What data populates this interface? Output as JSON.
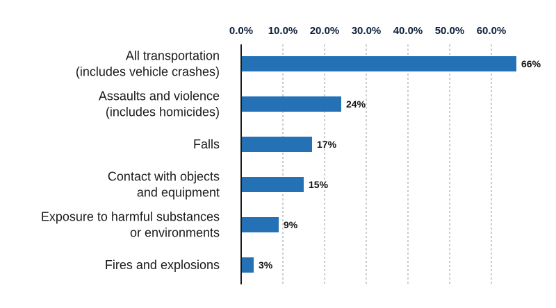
{
  "chart_data": {
    "type": "bar",
    "orientation": "horizontal",
    "title": "",
    "xlabel": "",
    "ylabel": "",
    "xlim": [
      0,
      66
    ],
    "x_ticks": [
      {
        "value": 0,
        "label": "0.0%"
      },
      {
        "value": 10,
        "label": "10.0%"
      },
      {
        "value": 20,
        "label": "20.0%"
      },
      {
        "value": 30,
        "label": "30.0%"
      },
      {
        "value": 40,
        "label": "40.0%"
      },
      {
        "value": 50,
        "label": "50.0%"
      },
      {
        "value": 60,
        "label": "60.0%"
      }
    ],
    "x_axis_position": "top",
    "grid": "vertical-dashed",
    "bar_color": "#2471b5",
    "categories": [
      {
        "lines": [
          "All transportation",
          "(includes vehicle crashes)"
        ]
      },
      {
        "lines": [
          "Assaults and violence",
          "(includes homicides)"
        ]
      },
      {
        "lines": [
          "Falls"
        ]
      },
      {
        "lines": [
          "Contact with objects",
          "and equipment"
        ]
      },
      {
        "lines": [
          "Exposure to harmful substances",
          "or environments"
        ]
      },
      {
        "lines": [
          "Fires and explosions"
        ]
      }
    ],
    "values": [
      66,
      24,
      17,
      15,
      9,
      3
    ],
    "value_labels": [
      "66%",
      "24%",
      "17%",
      "15%",
      "9%",
      "3%"
    ]
  }
}
